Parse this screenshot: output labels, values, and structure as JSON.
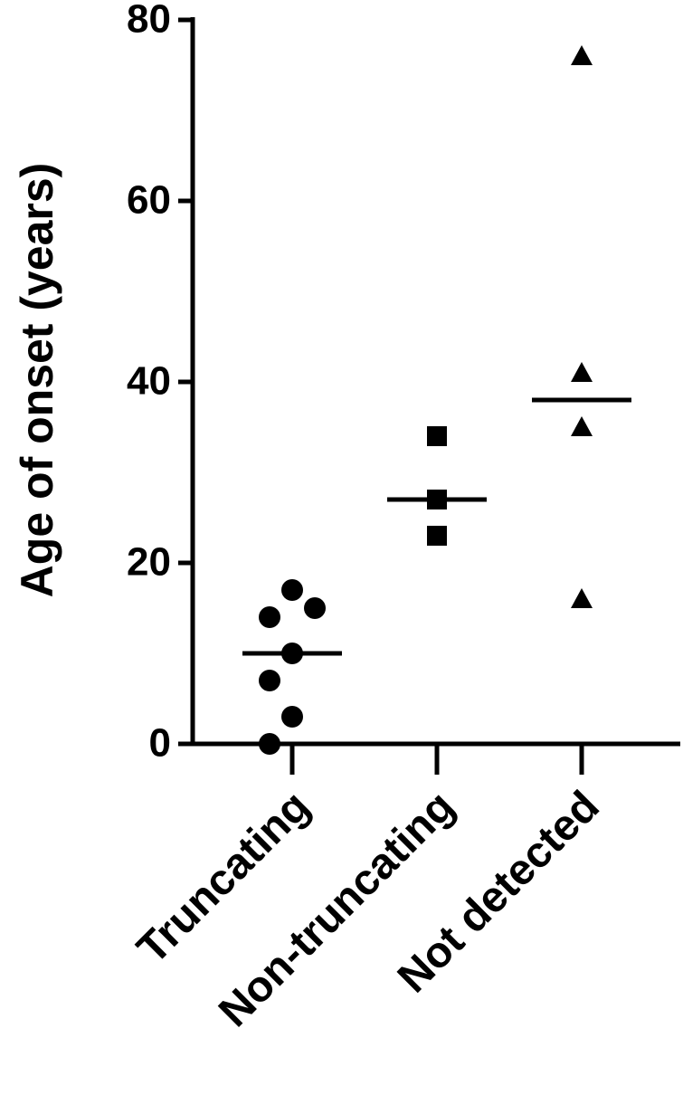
{
  "chart_data": {
    "type": "dot",
    "y_label": "Age of onset (years)",
    "categories": [
      "Truncating",
      "Non-truncating",
      "Not detected"
    ],
    "groups": [
      [
        17,
        14,
        15,
        10,
        7,
        3,
        0
      ],
      [
        34,
        27,
        23
      ],
      [
        76,
        41,
        35,
        16
      ]
    ],
    "medians": [
      10,
      27,
      38
    ],
    "markers": [
      "circle",
      "square",
      "triangle"
    ],
    "color": "#000000",
    "ylim": [
      0,
      80
    ],
    "yticks": [
      0,
      20,
      40,
      60,
      80
    ],
    "grid": false
  }
}
